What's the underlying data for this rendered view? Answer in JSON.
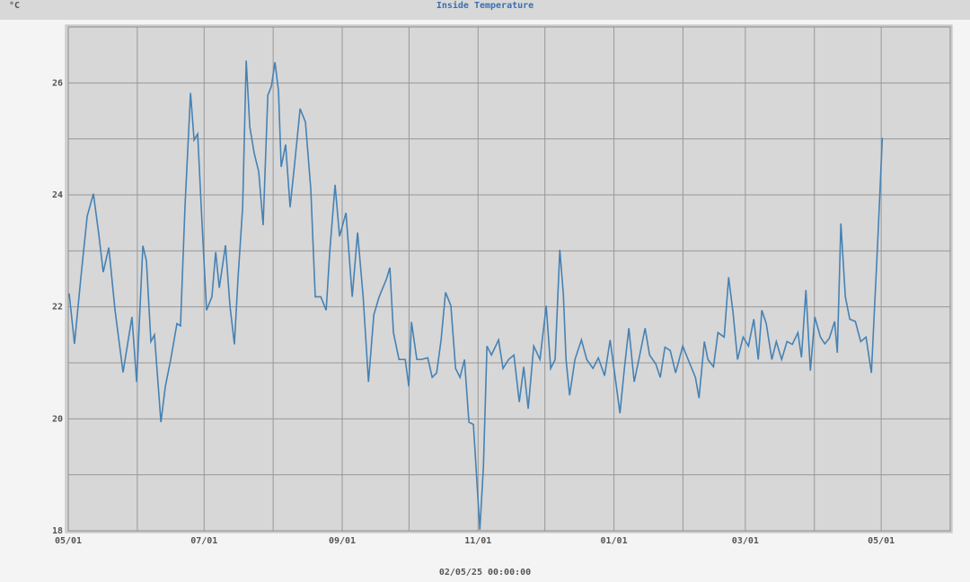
{
  "chart_data": {
    "type": "line",
    "title": "Inside Temperature",
    "y_label": "°C",
    "footer": "02/05/25 00:00:00",
    "color": "#4682b4",
    "grid": true,
    "xlim": [
      0,
      396
    ],
    "xticks": [
      {
        "value": 0,
        "label": "05/01"
      },
      {
        "value": 61,
        "label": "07/01"
      },
      {
        "value": 123,
        "label": "09/01"
      },
      {
        "value": 184,
        "label": "11/01"
      },
      {
        "value": 245,
        "label": "01/01"
      },
      {
        "value": 304,
        "label": "03/01"
      },
      {
        "value": 365,
        "label": "05/01"
      }
    ],
    "xgrid": [
      31,
      92,
      153,
      214,
      276,
      335
    ],
    "ylim": [
      18,
      27
    ],
    "yticks": [
      18,
      20,
      22,
      24,
      26
    ],
    "ygrid": [
      19,
      21,
      23,
      25
    ],
    "x": [
      0.4,
      2.8,
      5.6,
      8.5,
      11.3,
      13.7,
      15.7,
      18.2,
      21.0,
      24.6,
      28.6,
      30.7,
      33.5,
      35.1,
      37.1,
      38.7,
      41.6,
      43.6,
      46.0,
      48.8,
      50.4,
      52.4,
      54.9,
      56.5,
      58.1,
      60.1,
      62.1,
      64.5,
      66.2,
      67.8,
      70.6,
      72.6,
      74.6,
      76.2,
      78.3,
      79.9,
      81.5,
      83.5,
      85.5,
      87.5,
      89.6,
      91.2,
      92.8,
      94.4,
      95.6,
      97.6,
      99.6,
      101.7,
      104.1,
      106.5,
      108.9,
      110.9,
      113.4,
      115.8,
      117.4,
      119.8,
      121.8,
      124.7,
      127.5,
      129.9,
      132.4,
      134.8,
      137.2,
      139.6,
      142.9,
      144.4,
      146.0,
      148.5,
      151.3,
      152.9,
      154.1,
      156.5,
      158.5,
      161.4,
      163.4,
      165.4,
      167.4,
      169.4,
      171.8,
      173.9,
      175.9,
      177.9,
      179.9,
      181.9,
      184.8,
      186.4,
      188.0,
      190.0,
      193.2,
      195.2,
      197.7,
      200.1,
      202.5,
      204.5,
      206.5,
      209.0,
      211.8,
      214.6,
      216.6,
      218.6,
      220.7,
      222.3,
      223.5,
      225.1,
      227.5,
      230.4,
      232.8,
      235.6,
      238.0,
      240.8,
      243.3,
      245.3,
      247.7,
      249.7,
      251.7,
      254.1,
      256.6,
      259.0,
      261.0,
      263.8,
      265.8,
      267.9,
      270.3,
      272.7,
      275.9,
      278.3,
      281.6,
      283.2,
      285.6,
      287.2,
      289.7,
      291.7,
      294.5,
      296.5,
      298.5,
      300.5,
      303.0,
      305.4,
      307.8,
      309.8,
      311.4,
      313.4,
      315.9,
      317.9,
      320.3,
      322.7,
      325.1,
      327.6,
      329.2,
      331.2,
      333.2,
      335.2,
      337.7,
      339.7,
      341.7,
      344.1,
      345.3,
      346.9,
      348.9,
      350.9,
      353.4,
      355.8,
      358.2,
      360.6,
      363.5,
      365.5
    ],
    "values": [
      22.24,
      21.34,
      22.5,
      23.62,
      24.02,
      23.3,
      22.62,
      23.06,
      21.94,
      20.83,
      21.82,
      20.66,
      23.09,
      22.82,
      21.38,
      21.5,
      19.94,
      20.58,
      21.06,
      21.7,
      21.66,
      23.78,
      25.82,
      24.98,
      25.09,
      23.46,
      21.94,
      22.18,
      22.98,
      22.34,
      23.1,
      22.02,
      21.33,
      22.5,
      23.78,
      26.4,
      25.22,
      24.74,
      24.42,
      23.46,
      25.78,
      25.94,
      26.37,
      25.86,
      24.5,
      24.9,
      23.78,
      24.58,
      25.54,
      25.3,
      24.1,
      22.18,
      22.18,
      21.94,
      22.98,
      24.18,
      23.26,
      23.68,
      22.18,
      23.33,
      22.18,
      20.66,
      21.86,
      22.18,
      22.5,
      22.7,
      21.54,
      21.06,
      21.06,
      20.58,
      21.73,
      21.06,
      21.06,
      21.09,
      20.74,
      20.82,
      21.41,
      22.26,
      22.02,
      20.9,
      20.74,
      21.06,
      19.94,
      19.9,
      18.02,
      19.14,
      21.3,
      21.14,
      21.41,
      20.9,
      21.06,
      21.14,
      20.3,
      20.93,
      20.18,
      21.3,
      21.06,
      22.02,
      20.9,
      21.06,
      23.02,
      22.22,
      21.06,
      20.42,
      21.06,
      21.41,
      21.06,
      20.9,
      21.09,
      20.77,
      21.41,
      20.82,
      20.1,
      20.9,
      21.62,
      20.66,
      21.14,
      21.62,
      21.14,
      20.98,
      20.74,
      21.28,
      21.22,
      20.82,
      21.3,
      21.06,
      20.74,
      20.37,
      21.38,
      21.06,
      20.93,
      21.54,
      21.46,
      22.53,
      21.89,
      21.06,
      21.46,
      21.3,
      21.78,
      21.06,
      21.94,
      21.7,
      21.06,
      21.38,
      21.06,
      21.38,
      21.33,
      21.54,
      21.1,
      22.3,
      20.86,
      21.82,
      21.46,
      21.34,
      21.44,
      21.74,
      21.18,
      23.49,
      22.18,
      21.78,
      21.74,
      21.38,
      21.46,
      20.82,
      23.22,
      25.02
    ]
  }
}
